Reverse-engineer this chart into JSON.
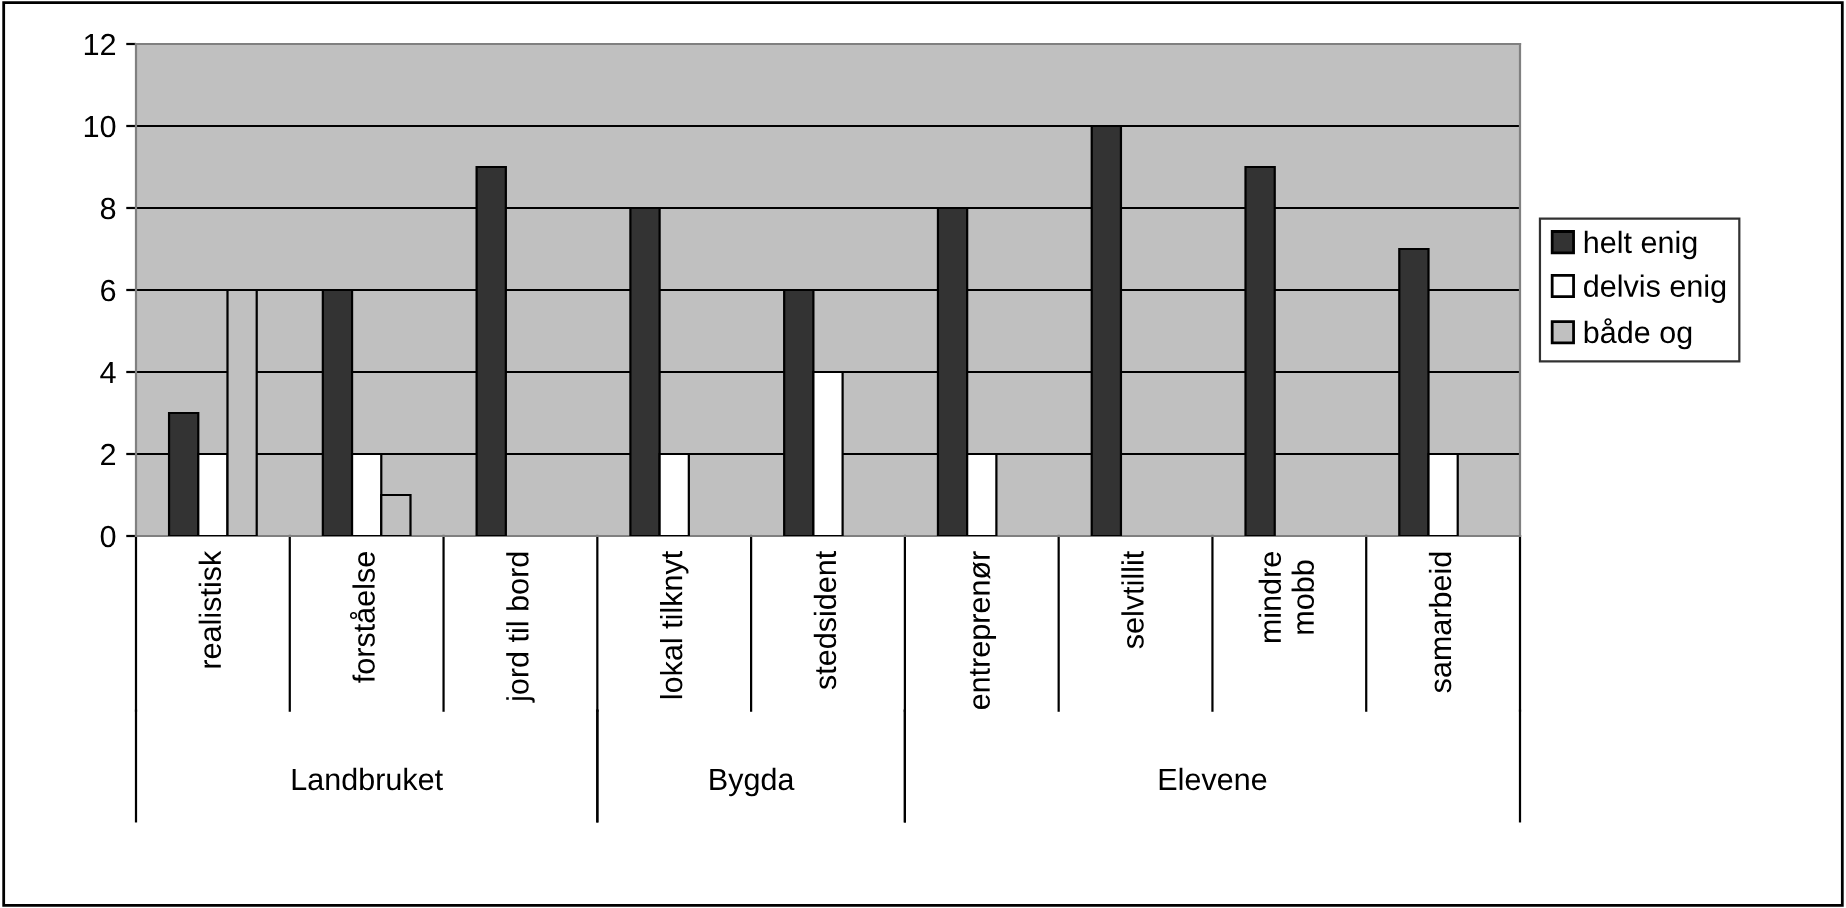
{
  "chart_data": {
    "type": "bar",
    "categories": [
      "realistisk",
      "forståelse",
      "jord til bord",
      "lokal tilknyt",
      "stedsident",
      "entreprenør",
      "selvtillit",
      "mindre\nmobb",
      "samarbeid"
    ],
    "series": [
      {
        "name": "helt enig",
        "color": "#333333",
        "values": [
          3,
          6,
          9,
          8,
          6,
          8,
          10,
          9,
          7
        ]
      },
      {
        "name": "delvis enig",
        "color": "#ffffff",
        "values": [
          2,
          2,
          null,
          2,
          4,
          2,
          null,
          null,
          2
        ]
      },
      {
        "name": "både og",
        "color": "#c0c0c0",
        "values": [
          6,
          1,
          null,
          null,
          null,
          null,
          null,
          null,
          null
        ]
      }
    ],
    "annotations": [
      "Landbruket",
      "Bygda",
      "Elevene"
    ],
    "ylim": [
      0,
      12
    ],
    "yticks": [
      0,
      2,
      4,
      6,
      8,
      10,
      12
    ],
    "grid": "y",
    "legend": "right"
  }
}
